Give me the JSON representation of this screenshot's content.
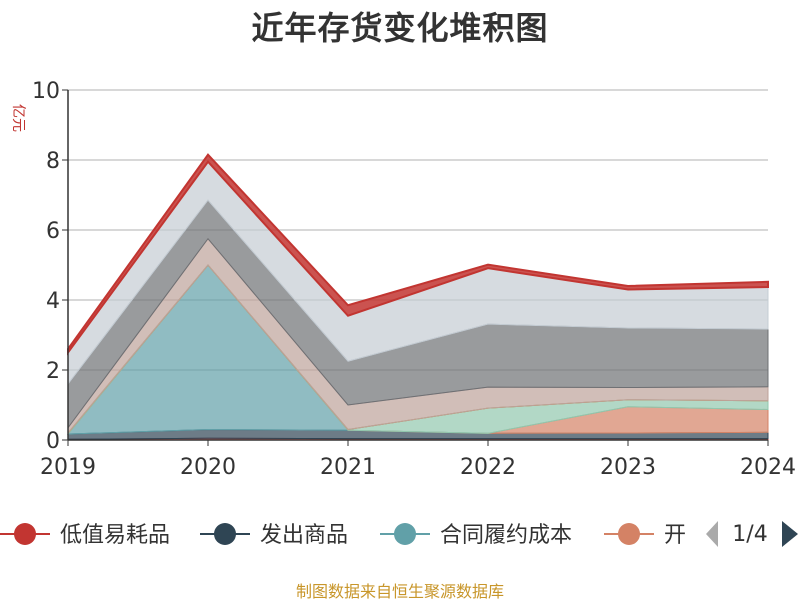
{
  "title": "近年存货变化堆积图",
  "source": "制图数据来自恒生聚源数据库",
  "unit": "亿元",
  "legend": {
    "items": [
      {
        "name": "低值易耗品",
        "color": "#c23531"
      },
      {
        "name": "发出商品",
        "color": "#2f4554"
      },
      {
        "name": "合同履约成本",
        "color": "#61a0a8"
      },
      {
        "name": "开",
        "color": "#d48265"
      }
    ],
    "page": "1/4"
  },
  "chart_data": {
    "type": "area",
    "stacked": true,
    "x": [
      "2019",
      "2020",
      "2021",
      "2022",
      "2023",
      "2024"
    ],
    "ylim": [
      0,
      10
    ],
    "yticks": [
      0,
      2,
      4,
      6,
      8,
      10
    ],
    "grid": true,
    "legend_position": "bottom",
    "series": [
      {
        "name": "低值易耗品",
        "color": "#c23531",
        "values": [
          0.02,
          0.05,
          0.04,
          0.04,
          0.04,
          0.04
        ]
      },
      {
        "name": "发出商品",
        "color": "#2f4554",
        "values": [
          0.15,
          0.25,
          0.24,
          0.15,
          0.16,
          0.18
        ]
      },
      {
        "name": "合同履约成本",
        "color": "#61a0a8",
        "values": [
          0.0,
          4.7,
          0.0,
          0.0,
          0.0,
          0.0
        ]
      },
      {
        "color": "#d48265",
        "values": [
          0.0,
          0.0,
          0.0,
          0.0,
          0.75,
          0.65
        ]
      },
      {
        "color": "#91c7ae",
        "values": [
          0.03,
          0.0,
          0.02,
          0.72,
          0.2,
          0.25
        ]
      },
      {
        "color": "#ca8622",
        "values": [
          0.0,
          0.0,
          0.0,
          0.0,
          0.0,
          0.0
        ]
      },
      {
        "color": "#bda29a",
        "values": [
          0.15,
          0.75,
          0.7,
          0.6,
          0.35,
          0.4
        ]
      },
      {
        "color": "#6e7074",
        "values": [
          1.25,
          1.1,
          1.25,
          1.8,
          1.7,
          1.65
        ]
      },
      {
        "color": "#c4ccd3",
        "values": [
          0.9,
          1.1,
          1.3,
          1.6,
          1.1,
          1.2
        ]
      },
      {
        "color": "#c23531",
        "values": [
          0.1,
          0.2,
          0.3,
          0.1,
          0.1,
          0.15
        ]
      }
    ]
  }
}
